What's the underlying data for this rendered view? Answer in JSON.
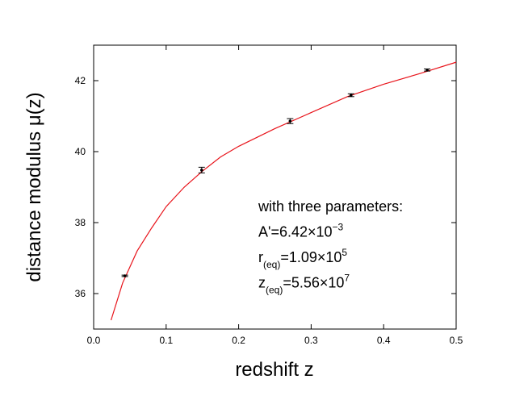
{
  "chart_data": {
    "type": "scatter",
    "xlabel": "redshift z",
    "ylabel": "distance modulus μ(z)",
    "xlim": [
      0,
      0.5
    ],
    "ylim": [
      35,
      43
    ],
    "xticks": [
      {
        "value": 0,
        "label": "0.0"
      },
      0.1,
      0.2,
      0.3,
      0.4,
      0.5
    ],
    "yticks": [
      36,
      38,
      40,
      42
    ],
    "points": {
      "color": "#000000",
      "x": [
        0.043,
        0.149,
        0.271,
        0.355,
        0.46
      ],
      "values": [
        36.5,
        39.48,
        40.86,
        41.59,
        42.3
      ],
      "errors": [
        0.02,
        0.08,
        0.07,
        0.04,
        0.03
      ]
    },
    "fit": {
      "color": "#e8141b",
      "x": [
        0.024,
        0.04,
        0.06,
        0.08,
        0.1,
        0.125,
        0.15,
        0.175,
        0.2,
        0.25,
        0.3,
        0.35,
        0.4,
        0.45,
        0.5
      ],
      "values": [
        35.25,
        36.3,
        37.2,
        37.85,
        38.45,
        39.0,
        39.45,
        39.85,
        40.15,
        40.65,
        41.1,
        41.55,
        41.9,
        42.2,
        42.52
      ]
    },
    "annotations": [
      [
        {
          "text": "with  three parameters:"
        }
      ],
      [
        {
          "text": "A'=6.42×10"
        },
        {
          "text": "−3",
          "script": "sup"
        }
      ],
      [
        {
          "text": "r"
        },
        {
          "text": "(eq)",
          "script": "sub"
        },
        {
          "text": "=1.09×10"
        },
        {
          "text": "5",
          "script": "sup"
        }
      ],
      [
        {
          "text": "z"
        },
        {
          "text": "(eq)",
          "script": "sub"
        },
        {
          "text": "=5.56×10"
        },
        {
          "text": "7",
          "script": "sup"
        }
      ]
    ]
  }
}
